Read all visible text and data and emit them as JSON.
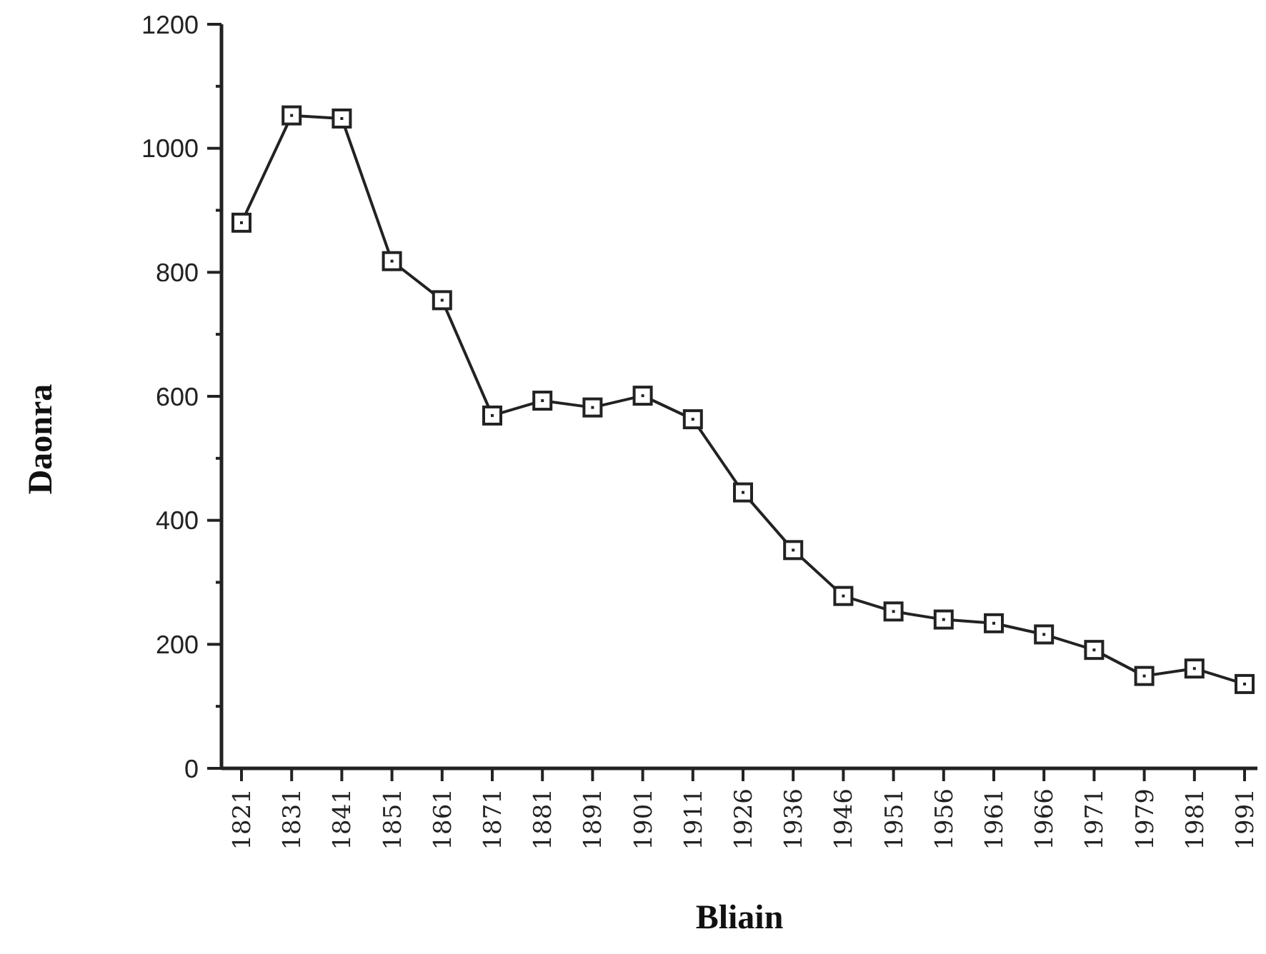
{
  "chart_data": {
    "type": "line",
    "xlabel": "Bliain",
    "ylabel": "Daonra",
    "categories": [
      "1821",
      "1831",
      "1841",
      "1851",
      "1861",
      "1871",
      "1881",
      "1891",
      "1901",
      "1911",
      "1926",
      "1936",
      "1946",
      "1951",
      "1956",
      "1961",
      "1966",
      "1971",
      "1979",
      "1981",
      "1991"
    ],
    "series": [
      {
        "color": "#222222",
        "values": [
          880,
          1053,
          1048,
          818,
          755,
          569,
          593,
          582,
          601,
          563,
          445,
          352,
          278,
          253,
          240,
          234,
          216,
          191,
          149,
          161,
          136
        ]
      }
    ],
    "ylim": [
      0,
      1200
    ],
    "yticks": [
      0,
      {
        "value": 100,
        "label": null
      },
      200,
      {
        "value": 300,
        "label": null
      },
      400,
      {
        "value": 500,
        "label": null
      },
      600,
      {
        "value": 700,
        "label": null
      },
      800,
      {
        "value": 900,
        "label": null
      },
      1000,
      {
        "value": 1100,
        "label": null
      },
      1200
    ],
    "marker": "square",
    "line_style": "solid"
  }
}
